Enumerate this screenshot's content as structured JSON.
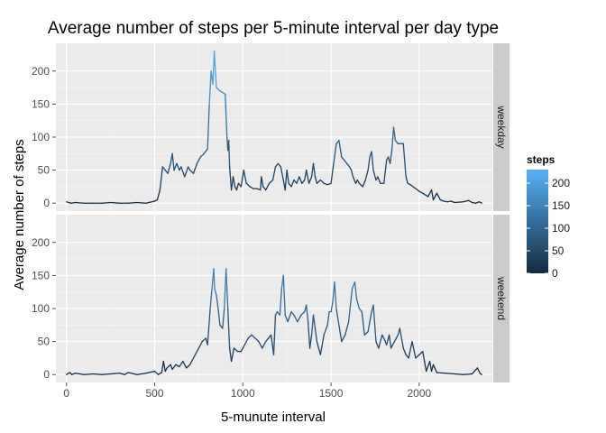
{
  "chart_data": {
    "type": "line",
    "title": "Average number of steps per 5-minute interval per day type",
    "xlabel": "5-munute interval",
    "ylabel": "Average number of steps",
    "xlim": [
      -60,
      2415
    ],
    "ylim": [
      -12,
      242
    ],
    "x_ticks": [
      "0",
      "500",
      "1000",
      "1500",
      "2000"
    ],
    "y_ticks": [
      "0",
      "50",
      "100",
      "150",
      "200"
    ],
    "grid": true,
    "color_scale": {
      "low": "#132B43",
      "high": "#56B1F7",
      "min": 0,
      "max": 230
    },
    "legend": {
      "title": "steps",
      "position": "right",
      "labels": [
        "200",
        "150",
        "100",
        "50",
        "0"
      ]
    },
    "panels": [
      {
        "label": "weekday",
        "points": [
          [
            0,
            2
          ],
          [
            25,
            0
          ],
          [
            50,
            1
          ],
          [
            100,
            0
          ],
          [
            150,
            0
          ],
          [
            200,
            0
          ],
          [
            250,
            1
          ],
          [
            300,
            0
          ],
          [
            350,
            0
          ],
          [
            400,
            1
          ],
          [
            450,
            0
          ],
          [
            500,
            3
          ],
          [
            515,
            5
          ],
          [
            530,
            20
          ],
          [
            545,
            55
          ],
          [
            560,
            50
          ],
          [
            575,
            45
          ],
          [
            590,
            60
          ],
          [
            600,
            75
          ],
          [
            610,
            50
          ],
          [
            625,
            60
          ],
          [
            640,
            50
          ],
          [
            650,
            55
          ],
          [
            670,
            40
          ],
          [
            690,
            55
          ],
          [
            700,
            50
          ],
          [
            720,
            45
          ],
          [
            740,
            60
          ],
          [
            760,
            70
          ],
          [
            780,
            75
          ],
          [
            800,
            82
          ],
          [
            810,
            150
          ],
          [
            820,
            200
          ],
          [
            830,
            180
          ],
          [
            838,
            230
          ],
          [
            850,
            175
          ],
          [
            870,
            170
          ],
          [
            900,
            165
          ],
          [
            910,
            100
          ],
          [
            915,
            80
          ],
          [
            920,
            95
          ],
          [
            925,
            55
          ],
          [
            935,
            20
          ],
          [
            945,
            40
          ],
          [
            955,
            25
          ],
          [
            965,
            20
          ],
          [
            975,
            30
          ],
          [
            990,
            25
          ],
          [
            1005,
            50
          ],
          [
            1020,
            30
          ],
          [
            1040,
            25
          ],
          [
            1060,
            22
          ],
          [
            1080,
            22
          ],
          [
            1100,
            20
          ],
          [
            1105,
            40
          ],
          [
            1115,
            25
          ],
          [
            1130,
            20
          ],
          [
            1150,
            30
          ],
          [
            1170,
            35
          ],
          [
            1185,
            55
          ],
          [
            1200,
            60
          ],
          [
            1215,
            55
          ],
          [
            1230,
            35
          ],
          [
            1240,
            20
          ],
          [
            1250,
            50
          ],
          [
            1260,
            30
          ],
          [
            1275,
            25
          ],
          [
            1290,
            35
          ],
          [
            1305,
            30
          ],
          [
            1320,
            40
          ],
          [
            1335,
            30
          ],
          [
            1350,
            35
          ],
          [
            1360,
            50
          ],
          [
            1375,
            30
          ],
          [
            1390,
            40
          ],
          [
            1400,
            60
          ],
          [
            1410,
            40
          ],
          [
            1420,
            30
          ],
          [
            1440,
            35
          ],
          [
            1460,
            30
          ],
          [
            1480,
            28
          ],
          [
            1500,
            30
          ],
          [
            1515,
            60
          ],
          [
            1530,
            90
          ],
          [
            1545,
            95
          ],
          [
            1560,
            70
          ],
          [
            1575,
            65
          ],
          [
            1590,
            60
          ],
          [
            1605,
            55
          ],
          [
            1615,
            50
          ],
          [
            1625,
            40
          ],
          [
            1640,
            30
          ],
          [
            1650,
            35
          ],
          [
            1660,
            30
          ],
          [
            1680,
            25
          ],
          [
            1695,
            35
          ],
          [
            1710,
            50
          ],
          [
            1720,
            70
          ],
          [
            1730,
            78
          ],
          [
            1740,
            50
          ],
          [
            1755,
            35
          ],
          [
            1765,
            40
          ],
          [
            1780,
            30
          ],
          [
            1800,
            30
          ],
          [
            1815,
            65
          ],
          [
            1825,
            70
          ],
          [
            1835,
            60
          ],
          [
            1845,
            80
          ],
          [
            1855,
            115
          ],
          [
            1865,
            95
          ],
          [
            1880,
            90
          ],
          [
            1895,
            90
          ],
          [
            1910,
            90
          ],
          [
            1925,
            40
          ],
          [
            1935,
            30
          ],
          [
            1950,
            28
          ],
          [
            2000,
            18
          ],
          [
            2020,
            15
          ],
          [
            2050,
            10
          ],
          [
            2070,
            20
          ],
          [
            2080,
            5
          ],
          [
            2100,
            15
          ],
          [
            2120,
            5
          ],
          [
            2140,
            3
          ],
          [
            2160,
            2
          ],
          [
            2180,
            3
          ],
          [
            2200,
            1
          ],
          [
            2250,
            2
          ],
          [
            2280,
            4
          ],
          [
            2300,
            1
          ],
          [
            2320,
            0
          ],
          [
            2340,
            2
          ],
          [
            2355,
            0
          ]
        ]
      },
      {
        "label": "weekend",
        "points": [
          [
            0,
            0
          ],
          [
            20,
            3
          ],
          [
            30,
            0
          ],
          [
            50,
            2
          ],
          [
            100,
            0
          ],
          [
            150,
            1
          ],
          [
            200,
            0
          ],
          [
            250,
            1
          ],
          [
            300,
            2
          ],
          [
            330,
            0
          ],
          [
            350,
            3
          ],
          [
            400,
            0
          ],
          [
            450,
            2
          ],
          [
            500,
            5
          ],
          [
            520,
            0
          ],
          [
            540,
            3
          ],
          [
            550,
            20
          ],
          [
            560,
            5
          ],
          [
            570,
            10
          ],
          [
            590,
            15
          ],
          [
            600,
            8
          ],
          [
            620,
            15
          ],
          [
            640,
            12
          ],
          [
            660,
            20
          ],
          [
            680,
            10
          ],
          [
            700,
            15
          ],
          [
            730,
            30
          ],
          [
            750,
            40
          ],
          [
            770,
            50
          ],
          [
            790,
            55
          ],
          [
            800,
            45
          ],
          [
            815,
            100
          ],
          [
            825,
            130
          ],
          [
            835,
            160
          ],
          [
            840,
            130
          ],
          [
            850,
            120
          ],
          [
            860,
            100
          ],
          [
            870,
            75
          ],
          [
            885,
            70
          ],
          [
            895,
            100
          ],
          [
            905,
            160
          ],
          [
            910,
            130
          ],
          [
            915,
            100
          ],
          [
            925,
            40
          ],
          [
            935,
            20
          ],
          [
            950,
            40
          ],
          [
            970,
            35
          ],
          [
            990,
            35
          ],
          [
            1010,
            45
          ],
          [
            1030,
            55
          ],
          [
            1050,
            60
          ],
          [
            1070,
            55
          ],
          [
            1090,
            50
          ],
          [
            1110,
            40
          ],
          [
            1130,
            50
          ],
          [
            1145,
            55
          ],
          [
            1160,
            60
          ],
          [
            1175,
            30
          ],
          [
            1185,
            90
          ],
          [
            1195,
            95
          ],
          [
            1210,
            90
          ],
          [
            1220,
            130
          ],
          [
            1230,
            150
          ],
          [
            1240,
            90
          ],
          [
            1255,
            80
          ],
          [
            1275,
            95
          ],
          [
            1290,
            90
          ],
          [
            1310,
            80
          ],
          [
            1330,
            90
          ],
          [
            1350,
            95
          ],
          [
            1360,
            105
          ],
          [
            1370,
            80
          ],
          [
            1380,
            40
          ],
          [
            1390,
            60
          ],
          [
            1400,
            90
          ],
          [
            1410,
            70
          ],
          [
            1420,
            50
          ],
          [
            1440,
            30
          ],
          [
            1460,
            60
          ],
          [
            1480,
            75
          ],
          [
            1490,
            95
          ],
          [
            1500,
            95
          ],
          [
            1510,
            110
          ],
          [
            1520,
            140
          ],
          [
            1530,
            100
          ],
          [
            1545,
            75
          ],
          [
            1560,
            50
          ],
          [
            1580,
            60
          ],
          [
            1600,
            80
          ],
          [
            1620,
            130
          ],
          [
            1635,
            140
          ],
          [
            1645,
            115
          ],
          [
            1660,
            100
          ],
          [
            1675,
            95
          ],
          [
            1690,
            60
          ],
          [
            1710,
            65
          ],
          [
            1730,
            95
          ],
          [
            1740,
            105
          ],
          [
            1755,
            50
          ],
          [
            1770,
            40
          ],
          [
            1790,
            60
          ],
          [
            1800,
            55
          ],
          [
            1815,
            45
          ],
          [
            1830,
            60
          ],
          [
            1840,
            40
          ],
          [
            1860,
            50
          ],
          [
            1880,
            60
          ],
          [
            1890,
            70
          ],
          [
            1910,
            40
          ],
          [
            1925,
            30
          ],
          [
            1940,
            25
          ],
          [
            1960,
            50
          ],
          [
            1980,
            25
          ],
          [
            2000,
            30
          ],
          [
            2020,
            35
          ],
          [
            2030,
            20
          ],
          [
            2040,
            5
          ],
          [
            2060,
            20
          ],
          [
            2070,
            5
          ],
          [
            2080,
            15
          ],
          [
            2100,
            3
          ],
          [
            2150,
            2
          ],
          [
            2200,
            1
          ],
          [
            2250,
            0
          ],
          [
            2300,
            1
          ],
          [
            2330,
            10
          ],
          [
            2345,
            2
          ],
          [
            2355,
            0
          ]
        ]
      }
    ]
  }
}
